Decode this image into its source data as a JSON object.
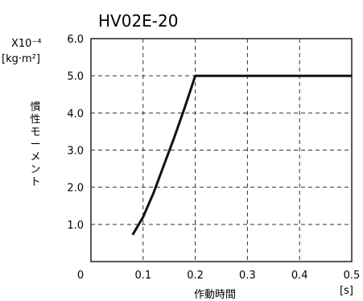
{
  "chart_data": {
    "type": "line",
    "title": "HV02E-20",
    "xlabel": "作動時間",
    "xunit": "[s]",
    "ylabel": "慣性モーメント",
    "yscale_label": "X10⁻⁴",
    "yunit": "[kg·m²]",
    "xlim": [
      0,
      0.5
    ],
    "ylim": [
      0,
      6.0
    ],
    "x_ticks": [
      "0",
      "0.1",
      "0.2",
      "0.3",
      "0.4",
      "0.5"
    ],
    "y_ticks": [
      "1.0",
      "2.0",
      "3.0",
      "4.0",
      "5.0",
      "6.0"
    ],
    "grid": true,
    "series": [
      {
        "x": [
          0.08,
          0.1,
          0.12,
          0.14,
          0.16,
          0.18,
          0.2,
          0.3,
          0.4,
          0.5
        ],
        "y": [
          0.72,
          1.2,
          1.85,
          2.6,
          3.35,
          4.15,
          5.0,
          5.0,
          5.0,
          5.0
        ]
      }
    ]
  }
}
